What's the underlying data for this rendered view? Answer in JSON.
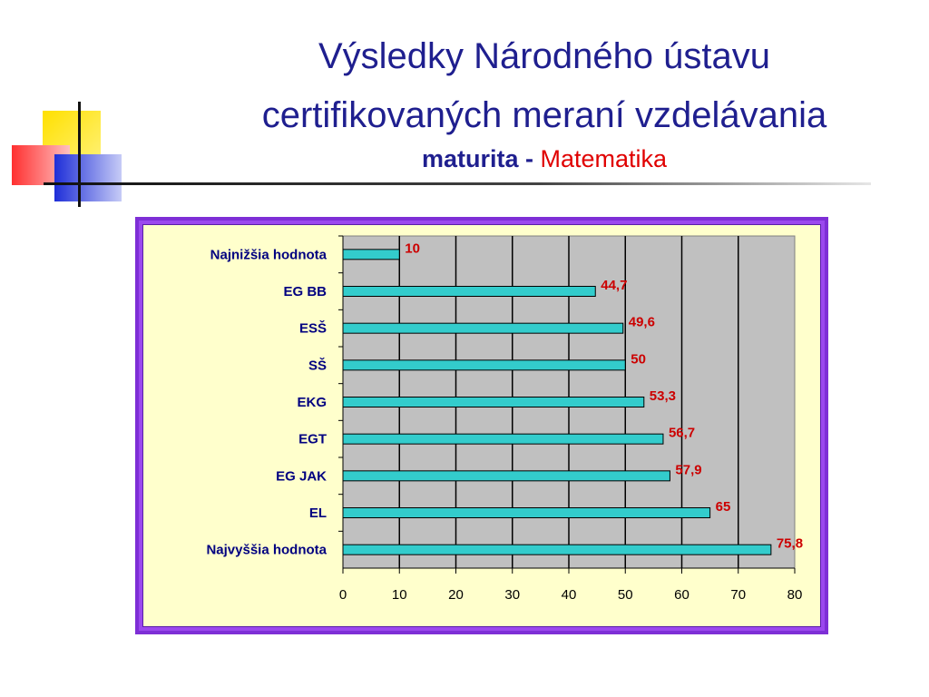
{
  "header": {
    "title_line1": "Výsledky Národného ústavu",
    "title_line2": "certifikovaných meraní vzdelávania",
    "subtitle_bold": "maturita",
    "subtitle_dash": " - ",
    "subtitle_red": "Matematika"
  },
  "colors": {
    "title": "#1f1f8f",
    "accent_red": "#e00000",
    "frame": "#9b48ee",
    "chart_bg": "#ffffcc",
    "plot_bg": "#c0c0c0",
    "bar": "#33cccc",
    "category_label": "#000080",
    "value_label": "#cc0000"
  },
  "chart_data": {
    "type": "bar",
    "orientation": "horizontal",
    "categories": [
      "Najnižšia hodnota",
      "EG BB",
      "ESŠ",
      "SŠ",
      "EKG",
      "EGT",
      "EG JAK",
      "EL",
      "Najvyššia hodnota"
    ],
    "values": [
      10,
      44.7,
      49.6,
      50,
      53.3,
      56.7,
      57.9,
      65,
      75.8
    ],
    "value_labels": [
      "10",
      "44,7",
      "49,6",
      "50",
      "53,3",
      "56,7",
      "57,9",
      "65",
      "75,8"
    ],
    "xlim": [
      0,
      80
    ],
    "x_ticks": [
      "0",
      "10",
      "20",
      "30",
      "40",
      "50",
      "60",
      "70",
      "80"
    ],
    "grid": true,
    "legend": "none"
  }
}
